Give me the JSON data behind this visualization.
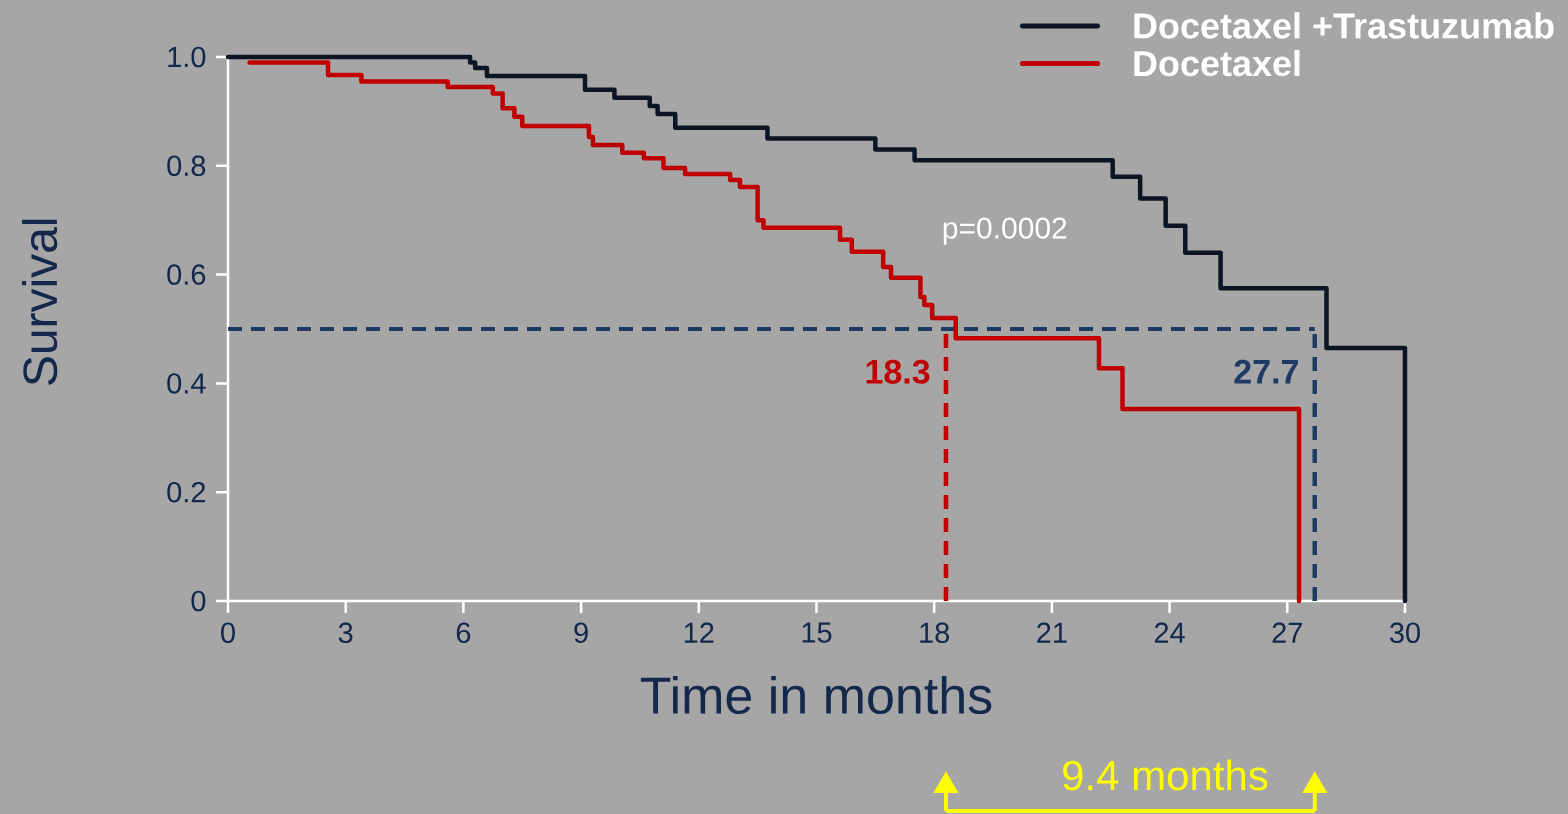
{
  "chart_data": {
    "type": "step",
    "xlabel": "Time in months",
    "ylabel": "Survival",
    "xlim": [
      0,
      30
    ],
    "xticks": [
      0,
      3,
      6,
      9,
      12,
      15,
      18,
      21,
      24,
      27,
      30
    ],
    "ylim": [
      0,
      1
    ],
    "yticks": [
      {
        "value": 0,
        "label": "0"
      },
      0.2,
      0.4,
      0.6,
      0.8,
      {
        "value": 1,
        "label": "1.0"
      }
    ],
    "series": [
      {
        "name": "Docetaxel +Trastuzumab",
        "color": "#0b1524",
        "x": [
          0,
          6.17,
          6.3,
          6.6,
          9.1,
          9.85,
          10.75,
          10.95,
          11.4,
          13.75,
          16.5,
          17.5,
          22.55,
          23.25,
          23.9,
          24.4,
          25.3,
          28.0,
          30.0
        ],
        "values": [
          1.0,
          0.99,
          0.98,
          0.965,
          0.94,
          0.925,
          0.91,
          0.895,
          0.87,
          0.85,
          0.83,
          0.81,
          0.78,
          0.74,
          0.69,
          0.64,
          0.575,
          0.465,
          0
        ]
      },
      {
        "name": "Docetaxel",
        "color": "#c00000",
        "x": [
          0.55,
          2.55,
          3.4,
          5.6,
          6.75,
          7.0,
          7.3,
          7.5,
          9.2,
          9.3,
          10.05,
          10.6,
          11.1,
          11.65,
          12.8,
          13.05,
          13.5,
          13.65,
          15.6,
          15.9,
          16.7,
          16.9,
          17.65,
          17.75,
          17.95,
          18.55,
          22.2,
          22.8,
          27.3
        ],
        "values": [
          0.99,
          0.967,
          0.955,
          0.945,
          0.933,
          0.906,
          0.89,
          0.873,
          0.853,
          0.838,
          0.824,
          0.814,
          0.796,
          0.785,
          0.774,
          0.761,
          0.7,
          0.686,
          0.664,
          0.642,
          0.614,
          0.594,
          0.559,
          0.544,
          0.52,
          0.483,
          0.428,
          0.353,
          0
        ]
      }
    ],
    "ref_lines": [
      {
        "axis": "y",
        "value": 0.5,
        "color": "#1f3b63",
        "line_style": "dashed"
      },
      {
        "axis": "x",
        "value": 18.3,
        "label": "18.3",
        "color": "#c00000",
        "line_style": "dashed"
      },
      {
        "axis": "x",
        "value": 27.7,
        "label": "27.7",
        "color": "#1f3b63",
        "line_style": "dashed"
      }
    ],
    "annotations": [
      "p=0.0002",
      "9.4   months"
    ],
    "legend": "top right"
  }
}
